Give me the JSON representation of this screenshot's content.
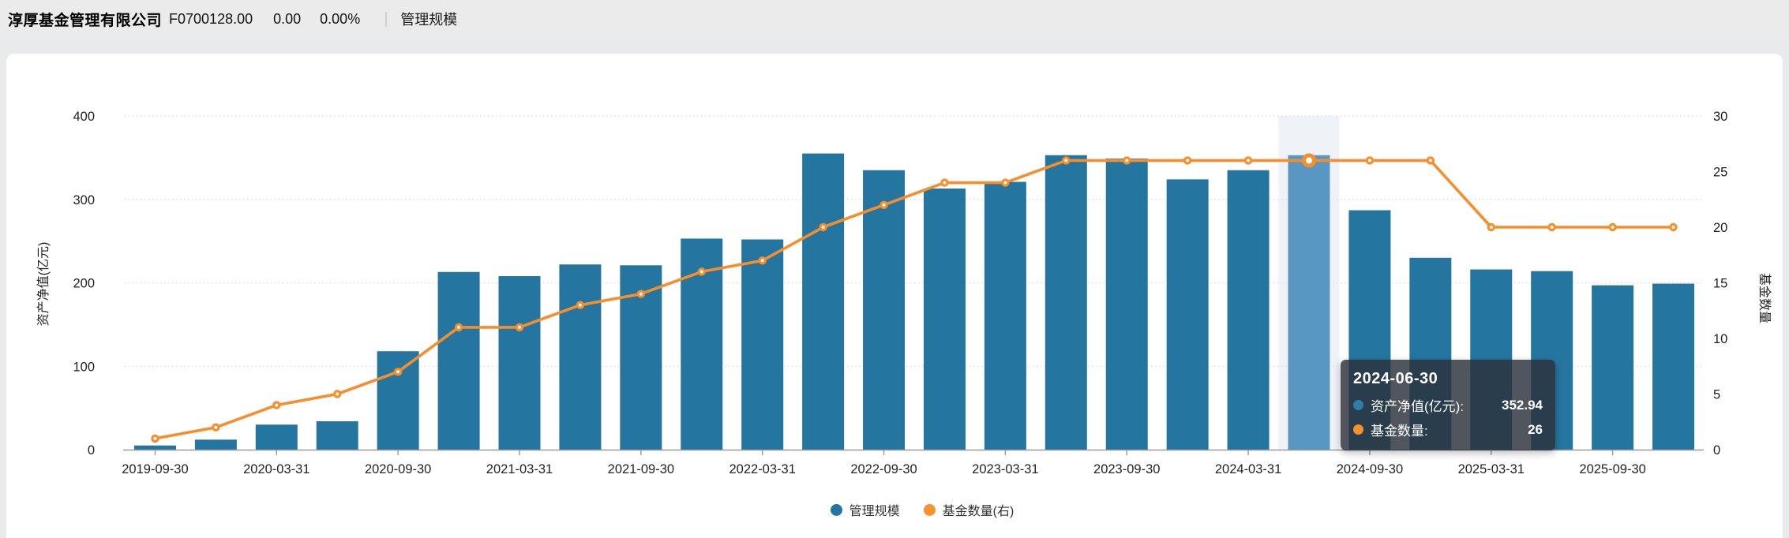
{
  "header": {
    "company": "淳厚基金管理有限公司",
    "code": "F0700128.00",
    "change": "0.00",
    "change_pct": "0.00%",
    "tab": "管理规模"
  },
  "chart_data": {
    "type": "bar",
    "subtype": "dual-axis bar+line, quarterly",
    "categories": [
      "2019-09-30",
      "2019-12-31",
      "2020-03-31",
      "2020-06-30",
      "2020-09-30",
      "2020-12-31",
      "2021-03-31",
      "2021-06-30",
      "2021-09-30",
      "2021-12-31",
      "2022-03-31",
      "2022-06-30",
      "2022-09-30",
      "2022-12-31",
      "2023-03-31",
      "2023-06-30",
      "2023-09-30",
      "2023-12-31",
      "2024-03-31",
      "2024-06-30",
      "2024-09-30",
      "2024-12-31",
      "2025-03-31",
      "2025-06-30",
      "2025-09-30",
      "2025-12-31"
    ],
    "x_label_interval": 2,
    "series": [
      {
        "name": "管理规模",
        "type": "bar",
        "axis": "left",
        "color": "#2476a0",
        "values": [
          5,
          12,
          30,
          34,
          118,
          213,
          208,
          222,
          221,
          253,
          252,
          355,
          335,
          313,
          321,
          353,
          349,
          324,
          335,
          352.94,
          287,
          230,
          216,
          214,
          197,
          199
        ]
      },
      {
        "name": "基金数量(右)",
        "type": "line",
        "axis": "right",
        "color": "#f78e2b",
        "values": [
          1,
          2,
          4,
          5,
          7,
          11,
          11,
          13,
          14,
          16,
          17,
          20,
          22,
          24,
          24,
          26,
          26,
          26,
          26,
          26,
          26,
          26,
          20,
          20,
          20,
          20
        ]
      }
    ],
    "left_axis": {
      "title": "资产净值(亿元)",
      "ticks": [
        0,
        100,
        200,
        300,
        400
      ],
      "max": 400
    },
    "right_axis": {
      "title": "基金数量",
      "ticks": [
        0,
        5,
        10,
        15,
        20,
        25,
        30
      ],
      "max": 30
    },
    "highlight_index": 19,
    "highlight_bar_color": "#5897c1",
    "highlight_band_color": "rgba(100,140,185,0.10)",
    "grid_color": "#d8ddf0",
    "axis_line_color": "#999999",
    "label_color": "#222222"
  },
  "legend": {
    "items": [
      {
        "label": "管理规模",
        "color": "#2476a0"
      },
      {
        "label": "基金数量(右)",
        "color": "#f7922d"
      }
    ]
  },
  "tooltip": {
    "date": "2024-06-30",
    "rows": [
      {
        "label": "资产净值(亿元):",
        "value": "352.94",
        "color": "#2b7fa9"
      },
      {
        "label": "基金数量:",
        "value": "26",
        "color": "#f7922d"
      }
    ]
  }
}
